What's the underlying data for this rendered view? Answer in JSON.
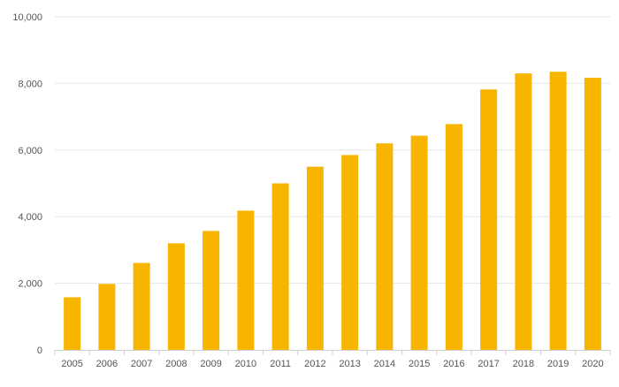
{
  "chart_data": {
    "type": "bar",
    "title": "",
    "xlabel": "",
    "ylabel": "",
    "categories": [
      "2005",
      "2006",
      "2007",
      "2008",
      "2009",
      "2010",
      "2011",
      "2012",
      "2013",
      "2014",
      "2015",
      "2016",
      "2017",
      "2018",
      "2019",
      "2020"
    ],
    "values": [
      1580,
      1980,
      2610,
      3200,
      3570,
      4180,
      5000,
      5500,
      5850,
      6200,
      6430,
      6780,
      7820,
      8300,
      8350,
      8170
    ],
    "ylim": [
      0,
      10000
    ],
    "yticks": [
      0,
      2000,
      4000,
      6000,
      8000,
      10000
    ],
    "ytick_labels": [
      "0",
      "2,000",
      "4,000",
      "6,000",
      "8,000",
      "10,000"
    ],
    "grid": true,
    "legend": "none",
    "colors": {
      "bar": "#F7B500",
      "grid": "#e6e6e6",
      "axis": "#d0d0d0",
      "text": "#555555"
    }
  }
}
